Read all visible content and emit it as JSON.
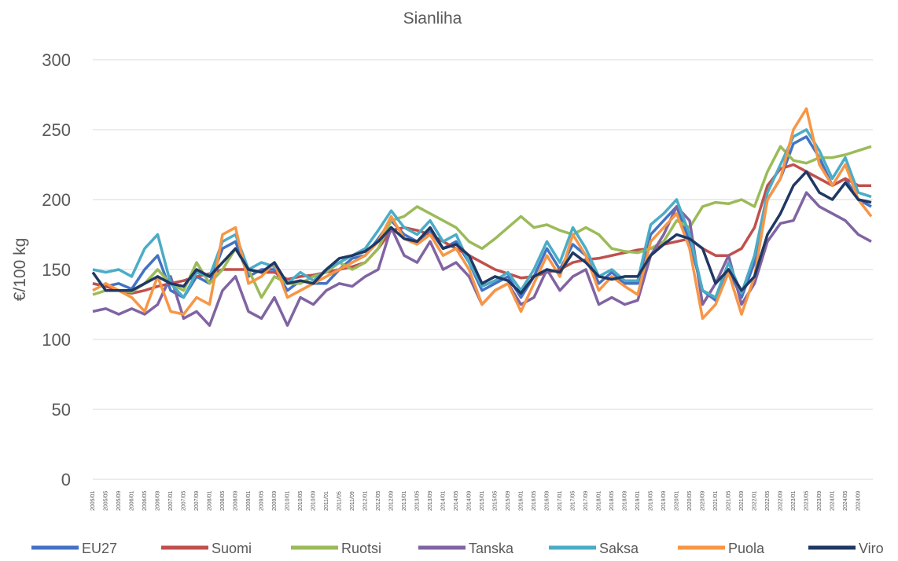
{
  "chart_data": {
    "type": "line",
    "title": "Sianliha",
    "y_label": "€/100 kg",
    "categories": [
      "2005/01",
      "2005/05",
      "2005/09",
      "2006/01",
      "2006/05",
      "2006/09",
      "2007/01",
      "2007/05",
      "2007/09",
      "2008/01",
      "2008/05",
      "2008/09",
      "2009/01",
      "2009/05",
      "2009/09",
      "2010/01",
      "2010/05",
      "2010/09",
      "2011/01",
      "2011/05",
      "2011/09",
      "2012/01",
      "2012/05",
      "2012/09",
      "2013/01",
      "2013/05",
      "2013/09",
      "2014/01",
      "2014/05",
      "2014/09",
      "2015/01",
      "2015/05",
      "2015/09",
      "2016/01",
      "2016/05",
      "2016/09",
      "2017/01",
      "2017/05",
      "2017/09",
      "2018/01",
      "2018/05",
      "2018/09",
      "2019/01",
      "2019/05",
      "2019/09",
      "2020/01",
      "2020/05",
      "2020/09",
      "2021/01",
      "2021/05",
      "2021/09",
      "2022/01",
      "2022/05",
      "2022/09",
      "2023/01",
      "2023/05",
      "2023/09",
      "2024/01",
      "2024/05",
      "2024/09",
      null
    ],
    "series": [
      {
        "name": "EU27",
        "color": "#4472c4",
        "values": [
          140,
          138,
          140,
          136,
          150,
          160,
          135,
          130,
          145,
          140,
          165,
          170,
          145,
          150,
          150,
          135,
          142,
          140,
          140,
          150,
          158,
          160,
          172,
          185,
          175,
          170,
          178,
          165,
          170,
          155,
          135,
          140,
          145,
          130,
          145,
          165,
          150,
          168,
          160,
          140,
          148,
          140,
          140,
          175,
          185,
          195,
          170,
          135,
          128,
          150,
          130,
          155,
          200,
          215,
          240,
          245,
          230,
          210,
          215,
          200,
          195
        ]
      },
      {
        "name": "Suomi",
        "color": "#c0504d",
        "values": [
          140,
          138,
          135,
          133,
          135,
          138,
          140,
          142,
          145,
          147,
          150,
          150,
          150,
          148,
          148,
          143,
          145,
          146,
          148,
          150,
          152,
          155,
          165,
          178,
          180,
          178,
          175,
          170,
          165,
          160,
          155,
          150,
          147,
          144,
          145,
          148,
          150,
          155,
          157,
          158,
          160,
          162,
          164,
          165,
          168,
          170,
          172,
          165,
          160,
          160,
          165,
          180,
          210,
          222,
          225,
          220,
          215,
          210,
          215,
          210,
          210
        ]
      },
      {
        "name": "Ruotsi",
        "color": "#9bbb59",
        "values": [
          132,
          135,
          135,
          134,
          140,
          150,
          140,
          135,
          155,
          140,
          150,
          165,
          150,
          130,
          145,
          140,
          140,
          145,
          148,
          155,
          150,
          155,
          165,
          185,
          188,
          195,
          190,
          185,
          180,
          170,
          165,
          172,
          180,
          188,
          180,
          182,
          178,
          175,
          180,
          175,
          165,
          163,
          162,
          165,
          170,
          185,
          180,
          195,
          198,
          197,
          200,
          195,
          220,
          238,
          228,
          226,
          230,
          230,
          232,
          235,
          238
        ]
      },
      {
        "name": "Tanska",
        "color": "#8064a2",
        "values": [
          120,
          122,
          118,
          122,
          118,
          125,
          145,
          115,
          120,
          110,
          135,
          145,
          120,
          115,
          130,
          110,
          130,
          125,
          135,
          140,
          138,
          145,
          150,
          180,
          160,
          155,
          170,
          150,
          155,
          145,
          125,
          135,
          140,
          125,
          130,
          150,
          135,
          145,
          150,
          125,
          130,
          125,
          128,
          160,
          175,
          195,
          185,
          125,
          140,
          160,
          125,
          140,
          170,
          183,
          185,
          205,
          195,
          190,
          185,
          175,
          170
        ]
      },
      {
        "name": "Saksa",
        "color": "#4bacc6",
        "values": [
          150,
          148,
          150,
          145,
          165,
          175,
          140,
          130,
          148,
          145,
          170,
          175,
          150,
          155,
          152,
          140,
          148,
          142,
          150,
          155,
          160,
          165,
          178,
          192,
          180,
          175,
          185,
          170,
          175,
          155,
          138,
          142,
          148,
          135,
          150,
          170,
          155,
          180,
          165,
          145,
          150,
          142,
          142,
          182,
          190,
          200,
          175,
          135,
          130,
          155,
          133,
          160,
          205,
          225,
          245,
          250,
          235,
          215,
          230,
          205,
          202
        ]
      },
      {
        "name": "Puola",
        "color": "#f79646",
        "values": [
          135,
          140,
          135,
          130,
          120,
          145,
          120,
          118,
          130,
          125,
          175,
          180,
          140,
          145,
          155,
          130,
          135,
          140,
          145,
          150,
          155,
          160,
          170,
          188,
          172,
          168,
          175,
          160,
          165,
          150,
          125,
          135,
          140,
          120,
          140,
          160,
          145,
          175,
          160,
          135,
          145,
          138,
          132,
          170,
          180,
          190,
          165,
          115,
          125,
          148,
          118,
          145,
          200,
          215,
          250,
          265,
          225,
          210,
          225,
          200,
          188
        ]
      },
      {
        "name": "Viro",
        "color": "#1f3864",
        "values": [
          148,
          135,
          135,
          135,
          140,
          145,
          140,
          138,
          150,
          145,
          155,
          165,
          150,
          148,
          155,
          140,
          142,
          140,
          150,
          158,
          160,
          163,
          170,
          180,
          172,
          170,
          180,
          165,
          168,
          160,
          140,
          145,
          142,
          133,
          145,
          150,
          148,
          162,
          155,
          145,
          143,
          145,
          145,
          160,
          168,
          175,
          172,
          165,
          140,
          150,
          135,
          145,
          175,
          190,
          210,
          220,
          205,
          200,
          212,
          200,
          198
        ]
      }
    ],
    "ylim": [
      0,
      300
    ],
    "yticks": [
      0,
      50,
      100,
      150,
      200,
      250,
      300
    ],
    "grid": true,
    "legend": "bottom"
  }
}
